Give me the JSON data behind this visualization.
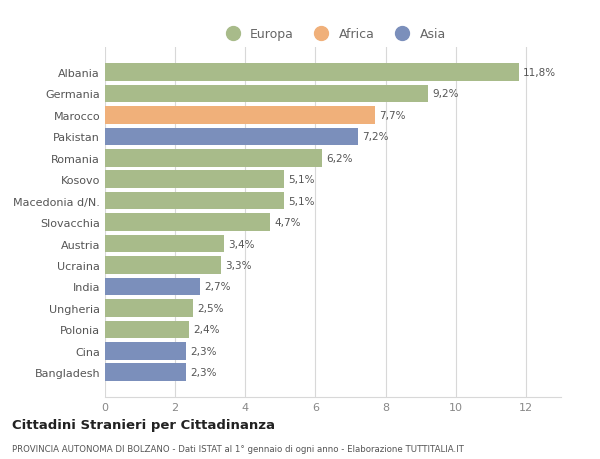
{
  "categories": [
    "Albania",
    "Germania",
    "Marocco",
    "Pakistan",
    "Romania",
    "Kosovo",
    "Macedonia d/N.",
    "Slovacchia",
    "Austria",
    "Ucraina",
    "India",
    "Ungheria",
    "Polonia",
    "Cina",
    "Bangladesh"
  ],
  "values": [
    11.8,
    9.2,
    7.7,
    7.2,
    6.2,
    5.1,
    5.1,
    4.7,
    3.4,
    3.3,
    2.7,
    2.5,
    2.4,
    2.3,
    2.3
  ],
  "labels": [
    "11,8%",
    "9,2%",
    "7,7%",
    "7,2%",
    "6,2%",
    "5,1%",
    "5,1%",
    "4,7%",
    "3,4%",
    "3,3%",
    "2,7%",
    "2,5%",
    "2,4%",
    "2,3%",
    "2,3%"
  ],
  "continents": [
    "Europa",
    "Europa",
    "Africa",
    "Asia",
    "Europa",
    "Europa",
    "Europa",
    "Europa",
    "Europa",
    "Europa",
    "Asia",
    "Europa",
    "Europa",
    "Asia",
    "Asia"
  ],
  "color_europa": "#a8bb8a",
  "color_africa": "#f0b07a",
  "color_asia": "#7b8fbb",
  "background_color": "#ffffff",
  "grid_color": "#d8d8d8",
  "title": "Cittadini Stranieri per Cittadinanza",
  "subtitle": "PROVINCIA AUTONOMA DI BOLZANO - Dati ISTAT al 1° gennaio di ogni anno - Elaborazione TUTTITALIA.IT",
  "xlim": [
    0,
    13
  ],
  "xticks": [
    0,
    2,
    4,
    6,
    8,
    10,
    12
  ],
  "bar_height": 0.82
}
